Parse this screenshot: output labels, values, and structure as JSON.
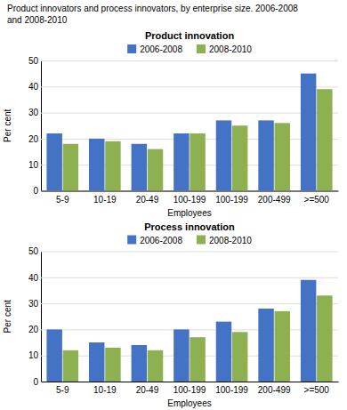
{
  "title": [
    "Product innovators and process innovators, by enterprise size. 2006-2008",
    "and 2008-2010"
  ],
  "chart_data": [
    {
      "type": "bar",
      "title": "Product innovation",
      "xlabel": "Employees",
      "ylabel": "Per cent",
      "categories": [
        "5-9",
        "10-19",
        "20-49",
        "100-199",
        "100-199",
        "200-499",
        ">=500"
      ],
      "series": [
        {
          "name": "2006-2008",
          "color": "#4472c4",
          "values": [
            22,
            20,
            18,
            22,
            27,
            27,
            45
          ]
        },
        {
          "name": "2008-2010",
          "color": "#8db050",
          "values": [
            18,
            19,
            16,
            22,
            25,
            26,
            39
          ]
        }
      ],
      "ylim": [
        0,
        50
      ],
      "yticks": [
        0,
        10,
        20,
        30,
        40,
        50
      ],
      "grid": true,
      "legend": "top"
    },
    {
      "type": "bar",
      "title": "Process innovation",
      "xlabel": "Employees",
      "ylabel": "Per cent",
      "categories": [
        "5-9",
        "10-19",
        "20-49",
        "100-199",
        "100-199",
        "200-499",
        ">=500"
      ],
      "series": [
        {
          "name": "2006-2008",
          "color": "#4472c4",
          "values": [
            20,
            15,
            14,
            20,
            23,
            28,
            39
          ]
        },
        {
          "name": "2008-2010",
          "color": "#8db050",
          "values": [
            12,
            13,
            12,
            17,
            19,
            27,
            33
          ]
        }
      ],
      "ylim": [
        0,
        50
      ],
      "yticks": [
        0,
        10,
        20,
        30,
        40,
        50
      ],
      "grid": true,
      "legend": "top"
    }
  ]
}
